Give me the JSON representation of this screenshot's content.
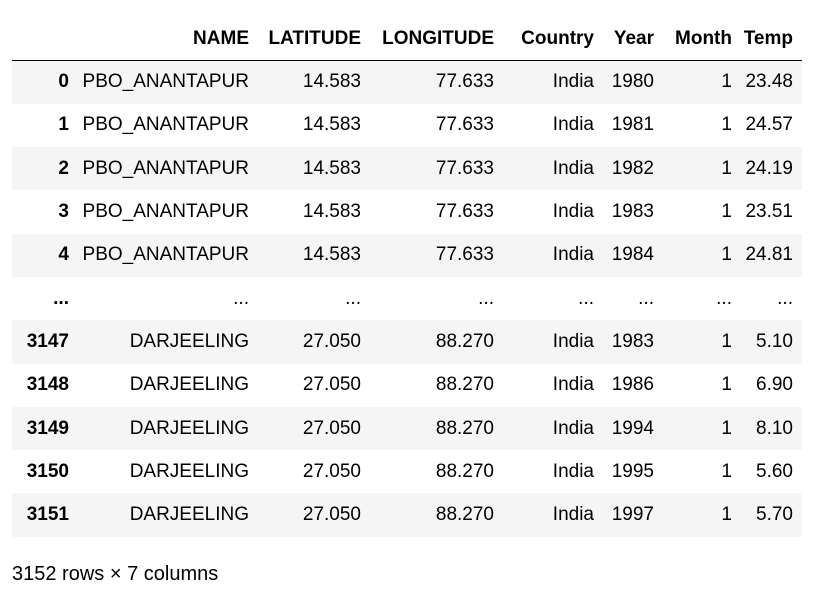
{
  "table": {
    "columns": [
      "",
      "NAME",
      "LATITUDE",
      "LONGITUDE",
      "Country",
      "Year",
      "Month",
      "Temp"
    ],
    "rows": [
      [
        "0",
        "PBO_ANANTAPUR",
        "14.583",
        "77.633",
        "India",
        "1980",
        "1",
        "23.48"
      ],
      [
        "1",
        "PBO_ANANTAPUR",
        "14.583",
        "77.633",
        "India",
        "1981",
        "1",
        "24.57"
      ],
      [
        "2",
        "PBO_ANANTAPUR",
        "14.583",
        "77.633",
        "India",
        "1982",
        "1",
        "24.19"
      ],
      [
        "3",
        "PBO_ANANTAPUR",
        "14.583",
        "77.633",
        "India",
        "1983",
        "1",
        "23.51"
      ],
      [
        "4",
        "PBO_ANANTAPUR",
        "14.583",
        "77.633",
        "India",
        "1984",
        "1",
        "24.81"
      ],
      [
        "...",
        "...",
        "...",
        "...",
        "...",
        "...",
        "...",
        "..."
      ],
      [
        "3147",
        "DARJEELING",
        "27.050",
        "88.270",
        "India",
        "1983",
        "1",
        "5.10"
      ],
      [
        "3148",
        "DARJEELING",
        "27.050",
        "88.270",
        "India",
        "1986",
        "1",
        "6.90"
      ],
      [
        "3149",
        "DARJEELING",
        "27.050",
        "88.270",
        "India",
        "1994",
        "1",
        "8.10"
      ],
      [
        "3150",
        "DARJEELING",
        "27.050",
        "88.270",
        "India",
        "1995",
        "1",
        "5.60"
      ],
      [
        "3151",
        "DARJEELING",
        "27.050",
        "88.270",
        "India",
        "1997",
        "1",
        "5.70"
      ]
    ]
  },
  "footer": "3152 rows × 7 columns"
}
